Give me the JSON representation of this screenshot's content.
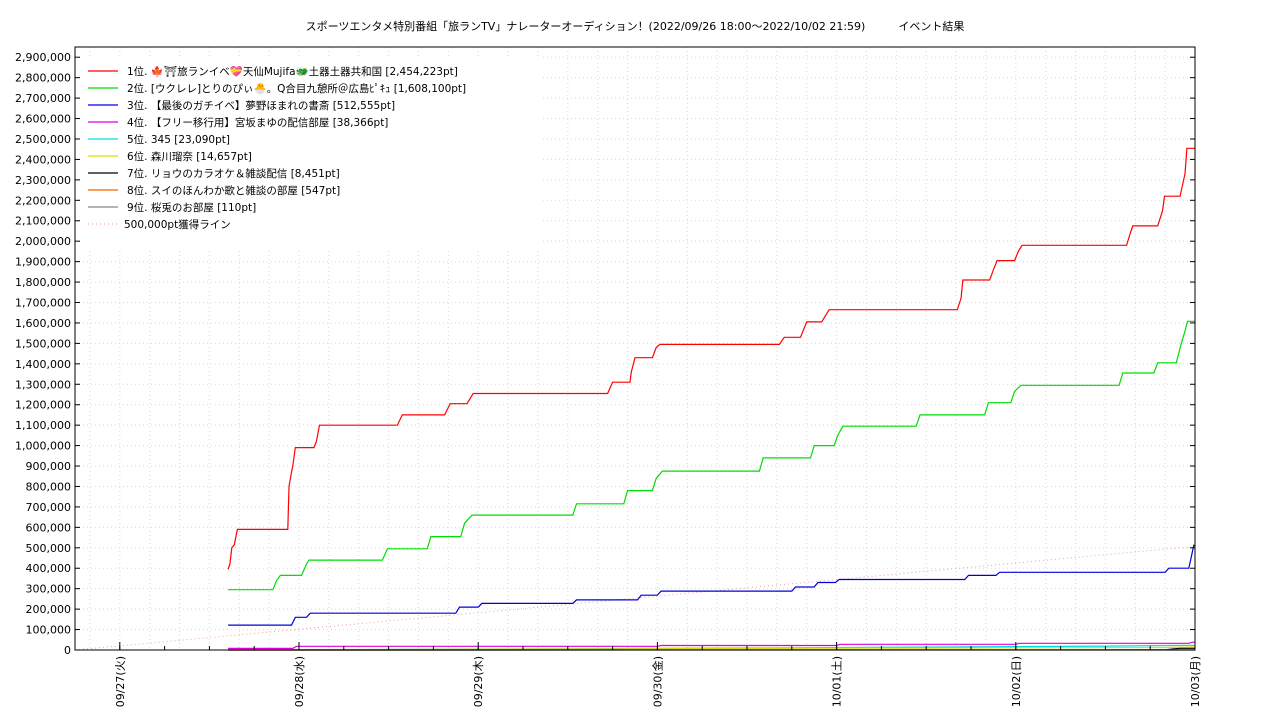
{
  "chart_data": {
    "type": "line",
    "title": "スポーツエンタメ特別番組「旅ランTV」ナレーターオーディション！(2022/09/26 18:00〜2022/10/02 21:59)　　　イベント結果",
    "xlabel": "",
    "ylabel": "",
    "x_start": "2022-09-26T18:00",
    "x_end": "2022-10-03T00:00",
    "ylim": [
      0,
      2950000
    ],
    "yticks": [
      0,
      100000,
      200000,
      300000,
      400000,
      500000,
      600000,
      700000,
      800000,
      900000,
      1000000,
      1100000,
      1200000,
      1300000,
      1400000,
      1500000,
      1600000,
      1700000,
      1800000,
      1900000,
      2000000,
      2100000,
      2200000,
      2300000,
      2400000,
      2500000,
      2600000,
      2700000,
      2800000,
      2900000
    ],
    "ytick_labels": [
      "0",
      "100,000",
      "200,000",
      "300,000",
      "400,000",
      "500,000",
      "600,000",
      "700,000",
      "800,000",
      "900,000",
      "1,000,000",
      "1,100,000",
      "1,200,000",
      "1,300,000",
      "1,400,000",
      "1,500,000",
      "1,600,000",
      "1,700,000",
      "1,800,000",
      "1,900,000",
      "2,000,000",
      "2,100,000",
      "2,200,000",
      "2,300,000",
      "2,400,000",
      "2,500,000",
      "2,600,000",
      "2,700,000",
      "2,800,000",
      "2,900,000"
    ],
    "xticks": [
      {
        "at": "2022-09-27T00:00",
        "label": "09/27(火)"
      },
      {
        "at": "2022-09-28T00:00",
        "label": "09/28(水)"
      },
      {
        "at": "2022-09-29T00:00",
        "label": "09/29(木)"
      },
      {
        "at": "2022-09-30T00:00",
        "label": "09/30(金)"
      },
      {
        "at": "2022-10-01T00:00",
        "label": "10/01(土)"
      },
      {
        "at": "2022-10-02T00:00",
        "label": "10/02(日)"
      },
      {
        "at": "2022-10-03T00:00",
        "label": "10/03(月)"
      }
    ],
    "grid": true,
    "legend_position": "top-left",
    "series": [
      {
        "name": "1位. 🍁⛩旅ランイベ💝天仙Mujifa🐲土器土器共和国 [2,454,223pt]",
        "color": "#ff0000",
        "points": [
          [
            "2022-09-27T14:30",
            395000
          ],
          [
            "2022-09-27T14:45",
            420000
          ],
          [
            "2022-09-27T15:00",
            500000
          ],
          [
            "2022-09-27T15:20",
            515000
          ],
          [
            "2022-09-27T15:45",
            590000
          ],
          [
            "2022-09-27T22:30",
            590000
          ],
          [
            "2022-09-27T22:40",
            800000
          ],
          [
            "2022-09-27T23:00",
            870000
          ],
          [
            "2022-09-27T23:10",
            900000
          ],
          [
            "2022-09-27T23:30",
            990000
          ],
          [
            "2022-09-28T02:00",
            990000
          ],
          [
            "2022-09-28T02:20",
            1020000
          ],
          [
            "2022-09-28T02:45",
            1100000
          ],
          [
            "2022-09-28T13:10",
            1100000
          ],
          [
            "2022-09-28T13:50",
            1150000
          ],
          [
            "2022-09-28T19:30",
            1150000
          ],
          [
            "2022-09-28T20:15",
            1205000
          ],
          [
            "2022-09-28T22:30",
            1205000
          ],
          [
            "2022-09-28T23:20",
            1255000
          ],
          [
            "2022-09-29T17:20",
            1255000
          ],
          [
            "2022-09-29T18:00",
            1310000
          ],
          [
            "2022-09-29T20:20",
            1310000
          ],
          [
            "2022-09-29T20:30",
            1360000
          ],
          [
            "2022-09-29T21:00",
            1430000
          ],
          [
            "2022-09-29T23:20",
            1430000
          ],
          [
            "2022-09-29T23:50",
            1480000
          ],
          [
            "2022-09-30T00:20",
            1495000
          ],
          [
            "2022-09-30T16:20",
            1495000
          ],
          [
            "2022-09-30T17:00",
            1530000
          ],
          [
            "2022-09-30T19:10",
            1530000
          ],
          [
            "2022-09-30T20:00",
            1605000
          ],
          [
            "2022-09-30T22:00",
            1605000
          ],
          [
            "2022-09-30T23:00",
            1665000
          ],
          [
            "2022-10-01T16:10",
            1665000
          ],
          [
            "2022-10-01T16:40",
            1720000
          ],
          [
            "2022-10-01T16:55",
            1810000
          ],
          [
            "2022-10-01T20:30",
            1810000
          ],
          [
            "2022-10-01T21:00",
            1860000
          ],
          [
            "2022-10-01T21:30",
            1905000
          ],
          [
            "2022-10-01T23:50",
            1905000
          ],
          [
            "2022-10-02T00:20",
            1950000
          ],
          [
            "2022-10-02T00:50",
            1980000
          ],
          [
            "2022-10-02T14:50",
            1980000
          ],
          [
            "2022-10-02T15:20",
            2040000
          ],
          [
            "2022-10-02T15:40",
            2075000
          ],
          [
            "2022-10-02T19:00",
            2075000
          ],
          [
            "2022-10-02T19:40",
            2150000
          ],
          [
            "2022-10-02T19:55",
            2220000
          ],
          [
            "2022-10-02T22:00",
            2220000
          ],
          [
            "2022-10-02T22:40",
            2330000
          ],
          [
            "2022-10-02T22:55",
            2454223
          ],
          [
            "2022-10-03T00:00",
            2454223
          ]
        ]
      },
      {
        "name": "2位. [ウクレレ]とりのぴぃ🐣。Q合目九憩所＠広島ﾋﾟｷｭ [1,608,100pt]",
        "color": "#00dd00",
        "points": [
          [
            "2022-09-27T14:30",
            295000
          ],
          [
            "2022-09-27T20:30",
            295000
          ],
          [
            "2022-09-27T21:00",
            340000
          ],
          [
            "2022-09-27T21:30",
            365000
          ],
          [
            "2022-09-28T00:20",
            365000
          ],
          [
            "2022-09-28T01:00",
            420000
          ],
          [
            "2022-09-28T01:20",
            440000
          ],
          [
            "2022-09-28T11:10",
            440000
          ],
          [
            "2022-09-28T11:50",
            495000
          ],
          [
            "2022-09-28T17:10",
            495000
          ],
          [
            "2022-09-28T17:40",
            555000
          ],
          [
            "2022-09-28T21:40",
            555000
          ],
          [
            "2022-09-28T22:10",
            620000
          ],
          [
            "2022-09-28T22:40",
            640000
          ],
          [
            "2022-09-28T23:10",
            660000
          ],
          [
            "2022-09-29T12:40",
            660000
          ],
          [
            "2022-09-29T13:10",
            715000
          ],
          [
            "2022-09-29T19:30",
            715000
          ],
          [
            "2022-09-29T20:00",
            780000
          ],
          [
            "2022-09-29T23:20",
            780000
          ],
          [
            "2022-09-29T23:50",
            840000
          ],
          [
            "2022-09-30T00:40",
            875000
          ],
          [
            "2022-09-30T13:40",
            875000
          ],
          [
            "2022-09-30T14:10",
            940000
          ],
          [
            "2022-09-30T20:30",
            940000
          ],
          [
            "2022-09-30T21:00",
            1000000
          ],
          [
            "2022-09-30T23:40",
            1000000
          ],
          [
            "2022-10-01T00:10",
            1050000
          ],
          [
            "2022-10-01T00:50",
            1095000
          ],
          [
            "2022-10-01T10:40",
            1095000
          ],
          [
            "2022-10-01T11:10",
            1150000
          ],
          [
            "2022-10-01T19:50",
            1150000
          ],
          [
            "2022-10-01T20:20",
            1210000
          ],
          [
            "2022-10-01T23:20",
            1210000
          ],
          [
            "2022-10-01T23:50",
            1265000
          ],
          [
            "2022-10-02T00:40",
            1295000
          ],
          [
            "2022-10-02T13:50",
            1295000
          ],
          [
            "2022-10-02T14:20",
            1355000
          ],
          [
            "2022-10-02T18:30",
            1355000
          ],
          [
            "2022-10-02T19:00",
            1405000
          ],
          [
            "2022-10-02T21:30",
            1405000
          ],
          [
            "2022-10-02T22:10",
            1500000
          ],
          [
            "2022-10-02T22:40",
            1560000
          ],
          [
            "2022-10-02T23:00",
            1608100
          ],
          [
            "2022-10-03T00:00",
            1608100
          ]
        ]
      },
      {
        "name": "3位. 【最後のガチイベ】夢野ほまれの書斎 [512,555pt]",
        "color": "#0000dd",
        "points": [
          [
            "2022-09-27T14:30",
            122000
          ],
          [
            "2022-09-27T23:00",
            122000
          ],
          [
            "2022-09-27T23:30",
            160000
          ],
          [
            "2022-09-28T01:00",
            160000
          ],
          [
            "2022-09-28T01:30",
            180000
          ],
          [
            "2022-09-28T21:00",
            180000
          ],
          [
            "2022-09-28T21:30",
            210000
          ],
          [
            "2022-09-29T00:00",
            210000
          ],
          [
            "2022-09-29T00:30",
            228000
          ],
          [
            "2022-09-29T12:40",
            228000
          ],
          [
            "2022-09-29T13:10",
            245000
          ],
          [
            "2022-09-29T21:20",
            245000
          ],
          [
            "2022-09-29T21:50",
            268000
          ],
          [
            "2022-09-30T00:00",
            268000
          ],
          [
            "2022-09-30T00:30",
            288000
          ],
          [
            "2022-09-30T18:00",
            288000
          ],
          [
            "2022-09-30T18:30",
            308000
          ],
          [
            "2022-09-30T21:00",
            308000
          ],
          [
            "2022-09-30T21:30",
            330000
          ],
          [
            "2022-09-30T23:50",
            330000
          ],
          [
            "2022-10-01T00:20",
            345000
          ],
          [
            "2022-10-01T17:10",
            345000
          ],
          [
            "2022-10-01T17:40",
            365000
          ],
          [
            "2022-10-01T21:20",
            365000
          ],
          [
            "2022-10-01T21:50",
            380000
          ],
          [
            "2022-10-02T20:00",
            380000
          ],
          [
            "2022-10-02T20:30",
            400000
          ],
          [
            "2022-10-02T23:10",
            400000
          ],
          [
            "2022-10-02T23:25",
            440000
          ],
          [
            "2022-10-02T23:50",
            512555
          ],
          [
            "2022-10-03T00:00",
            512555
          ]
        ]
      },
      {
        "name": "4位. 【フリー移行用】宮坂まゆの配信部屋 [38,366pt]",
        "color": "#dd00dd",
        "points": [
          [
            "2022-09-27T14:30",
            8000
          ],
          [
            "2022-09-27T23:10",
            8000
          ],
          [
            "2022-09-27T23:40",
            18000
          ],
          [
            "2022-09-30T00:00",
            18000
          ],
          [
            "2022-09-30T00:30",
            22000
          ],
          [
            "2022-10-01T00:00",
            22000
          ],
          [
            "2022-10-01T00:30",
            28000
          ],
          [
            "2022-10-02T00:00",
            28000
          ],
          [
            "2022-10-02T00:30",
            33000
          ],
          [
            "2022-10-02T23:10",
            33000
          ],
          [
            "2022-10-02T23:40",
            38366
          ],
          [
            "2022-10-03T00:00",
            38366
          ]
        ]
      },
      {
        "name": "5位. 345 [23,090pt]",
        "color": "#00dddd",
        "points": [
          [
            "2022-09-27T14:30",
            1000
          ],
          [
            "2022-09-28T12:00",
            3000
          ],
          [
            "2022-09-29T12:00",
            6000
          ],
          [
            "2022-09-30T12:00",
            10000
          ],
          [
            "2022-10-01T12:00",
            14000
          ],
          [
            "2022-10-02T12:00",
            19000
          ],
          [
            "2022-10-02T23:30",
            23090
          ],
          [
            "2022-10-03T00:00",
            23090
          ]
        ]
      },
      {
        "name": "6位. 森川瑠奈 [14,657pt]",
        "color": "#dddd00",
        "points": [
          [
            "2022-09-27T14:30",
            1000
          ],
          [
            "2022-09-29T00:00",
            4000
          ],
          [
            "2022-10-01T00:00",
            9000
          ],
          [
            "2022-10-02T20:00",
            12000
          ],
          [
            "2022-10-02T23:30",
            14657
          ],
          [
            "2022-10-03T00:00",
            14657
          ]
        ]
      },
      {
        "name": "7位. リョウのカラオケ＆雑談配信 [8,451pt]",
        "color": "#000000",
        "points": [
          [
            "2022-09-27T14:30",
            0
          ],
          [
            "2022-10-02T20:00",
            500
          ],
          [
            "2022-10-02T21:00",
            5000
          ],
          [
            "2022-10-02T22:00",
            8451
          ],
          [
            "2022-10-03T00:00",
            8451
          ]
        ]
      },
      {
        "name": "8位. スイのほんわか歌と雑談の部屋 [547pt]",
        "color": "#ee6600",
        "points": [
          [
            "2022-09-27T14:30",
            0
          ],
          [
            "2022-10-01T00:00",
            300
          ],
          [
            "2022-10-02T22:00",
            547
          ],
          [
            "2022-10-03T00:00",
            547
          ]
        ]
      },
      {
        "name": "9位. 桜兎のお部屋 [110pt]",
        "color": "#888888",
        "points": [
          [
            "2022-09-27T14:30",
            0
          ],
          [
            "2022-09-30T00:00",
            60
          ],
          [
            "2022-10-02T22:00",
            110
          ],
          [
            "2022-10-03T00:00",
            110
          ]
        ]
      }
    ],
    "reference_line": {
      "name": "500,000pt獲得ライン",
      "color": "#e8a0a0",
      "points": [
        [
          "2022-09-26T18:00",
          0
        ],
        [
          "2022-10-02T21:59",
          500000
        ],
        [
          "2022-10-03T00:00",
          500000
        ]
      ]
    }
  }
}
